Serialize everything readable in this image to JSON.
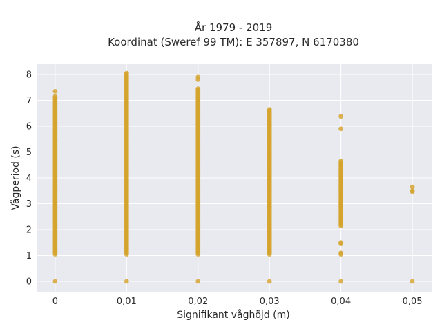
{
  "chart_data": {
    "type": "scatter",
    "title_line1": "År 1979 - 2019",
    "title_line2": "Koordinat (Sweref 99 TM): E 357897, N 6170380",
    "xlabel": "Signifikant våghöjd (m)",
    "ylabel": "Vågperiod (s)",
    "x_ticks": [
      "0",
      "0,01",
      "0,02",
      "0,03",
      "0,04",
      "0,05"
    ],
    "y_ticks": [
      "0",
      "1",
      "2",
      "3",
      "4",
      "5",
      "6",
      "7",
      "8"
    ],
    "xlim": [
      -0.0025,
      0.0527
    ],
    "ylim": [
      -0.4,
      8.4
    ],
    "grid": true,
    "colors": {
      "marker": "#d4a32c",
      "plot_bg": "#e9e9f0",
      "grid": "#ffffff"
    },
    "columns": [
      {
        "x": 0.0,
        "y_range": [
          1.05,
          7.15
        ],
        "extra_y": [
          0,
          7.35
        ]
      },
      {
        "x": 0.01,
        "y_range": [
          1.05,
          8.05
        ],
        "extra_y": [
          0
        ]
      },
      {
        "x": 0.02,
        "y_range": [
          1.05,
          7.45
        ],
        "extra_y": [
          0,
          7.8,
          7.9
        ]
      },
      {
        "x": 0.03,
        "y_range": [
          1.05,
          6.65
        ],
        "extra_y": [
          0
        ]
      },
      {
        "x": 0.04,
        "y_range": [
          2.15,
          4.65
        ],
        "extra_y": [
          0,
          1.05,
          1.1,
          1.45,
          1.5,
          5.9,
          6.38
        ]
      },
      {
        "x": 0.05,
        "y_range": null,
        "extra_y": [
          0,
          3.47,
          3.5,
          3.65
        ]
      }
    ]
  }
}
